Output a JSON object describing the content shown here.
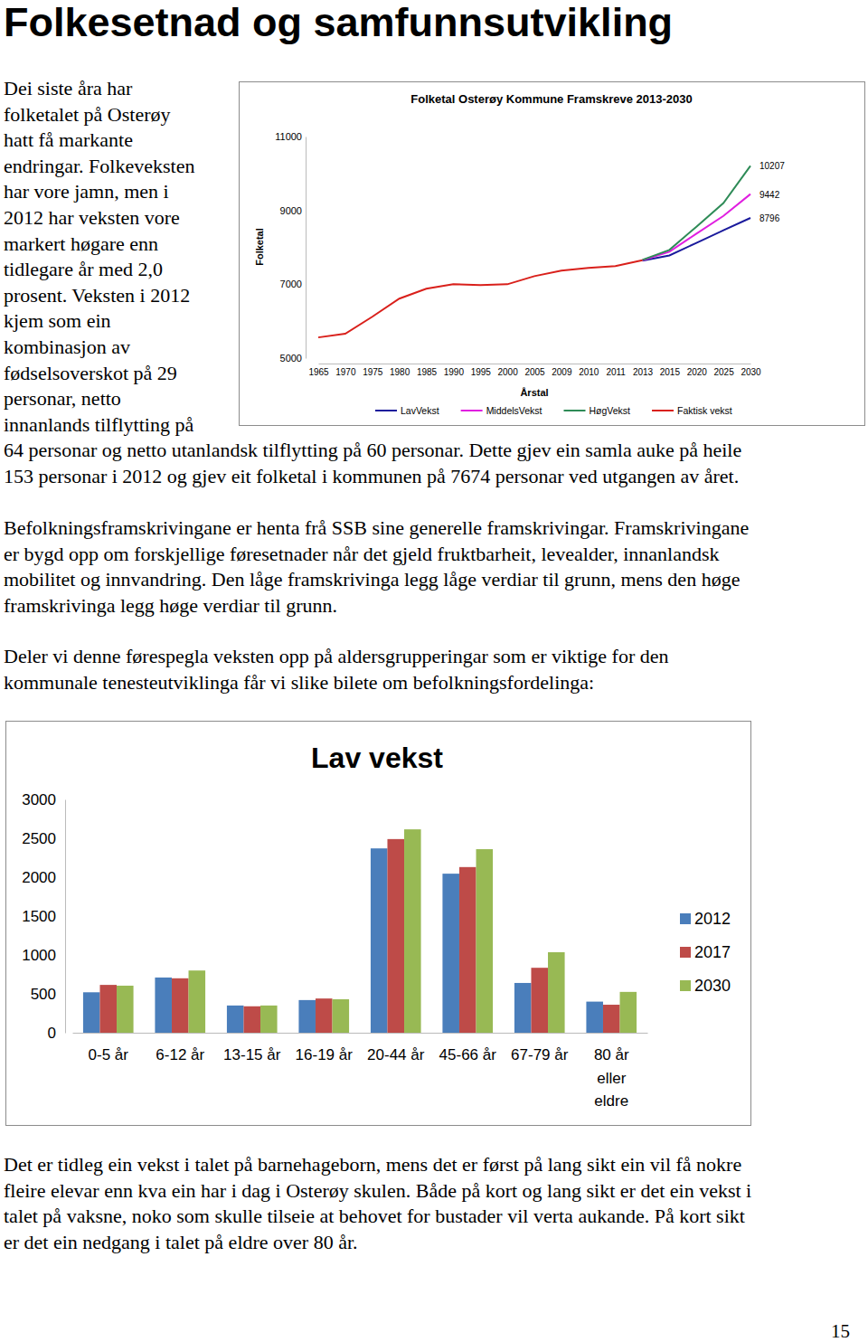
{
  "document": {
    "title": "Folkesetnad og samfunnsutvikling",
    "paragraphs": [
      [
        "Dei siste åra har",
        "folketalet på Osterøy",
        "hatt få markante",
        "endringar. Folkeveksten",
        "har vore jamn, men i",
        "2012 har veksten vore",
        "markert høgare enn",
        "tidlegare år med 2,0",
        "prosent. Veksten i 2012",
        "kjem som ein",
        "kombinasjon av",
        "fødselsoverskot på 29",
        "personar, netto",
        "innanlands tilflytting på",
        "64 personar og netto utanlandsk tilflytting på 60 personar. Dette gjev ein samla auke på heile",
        "153 personar i 2012 og gjev eit folketal i kommunen på 7674 personar ved utgangen av året."
      ],
      [
        "Befolkningsframskrivingane er henta frå SSB sine generelle framskrivingar. Framskrivingane",
        "er bygd opp om forskjellige føresetnader når det gjeld fruktbarheit, levealder, innanlandsk",
        "mobilitet og innvandring. Den låge framskrivinga legg låge verdiar til grunn, mens den høge",
        "framskrivinga legg høge verdiar til grunn."
      ],
      [
        "Deler vi denne førespegla veksten opp på aldersgrupperingar som er viktige for den",
        "kommunale tenesteutviklinga får vi slike bilete om befolkningsfordelinga:"
      ],
      [
        "Det er tidleg ein vekst i talet på barnehageborn, mens det er først på lang sikt ein vil få nokre",
        "fleire elevar enn kva ein har i dag i Osterøy skulen. Både på kort og lang sikt er det ein vekst i",
        "talet på vaksne, noko som skulle tilseie at behovet for bustader vil verta aukande. På kort sikt",
        "er det ein nedgang i talet på eldre over 80 år."
      ]
    ],
    "page_number": "15"
  },
  "chart_data": [
    {
      "type": "line",
      "title": "Folketal Osterøy Kommune Framskreve 2013-2030",
      "x_label": "Årstal",
      "y_label": "Folketal",
      "categories": [
        "1965",
        "1970",
        "1975",
        "1980",
        "1985",
        "1990",
        "1995",
        "2000",
        "2005",
        "2009",
        "2010",
        "2011",
        "2013",
        "2015",
        "2020",
        "2025",
        "2030"
      ],
      "ylim": [
        5000,
        11000
      ],
      "yticks": [
        5000,
        7000,
        9000,
        11000
      ],
      "grid": false,
      "legend": "bottom",
      "annotations": [
        "8796",
        "9442",
        "10207"
      ],
      "series": [
        {
          "name": "LavVekst",
          "color": "#1a1a9c",
          "values": [
            null,
            null,
            null,
            null,
            null,
            null,
            null,
            null,
            null,
            null,
            null,
            null,
            7640,
            7780,
            8120,
            8460,
            8796
          ]
        },
        {
          "name": "MiddelsVekst",
          "color": "#e01fe0",
          "values": [
            null,
            null,
            null,
            null,
            null,
            null,
            null,
            null,
            null,
            null,
            null,
            null,
            7650,
            7880,
            8370,
            8850,
            9442
          ]
        },
        {
          "name": "HøgVekst",
          "color": "#2e8b57",
          "values": [
            null,
            null,
            null,
            null,
            null,
            null,
            null,
            null,
            null,
            null,
            null,
            null,
            7660,
            7930,
            8560,
            9200,
            10207
          ]
        },
        {
          "name": "Faktisk vekst",
          "color": "#d9201b",
          "values": [
            5560,
            5660,
            6120,
            6610,
            6880,
            7000,
            6980,
            7000,
            7220,
            7370,
            7440,
            7490,
            7650,
            null,
            null,
            null,
            null
          ]
        }
      ]
    },
    {
      "type": "bar",
      "title": "Lav vekst",
      "categories": [
        "0-5 år",
        "6-12 år",
        "13-15 år",
        "16-19 år",
        "20-44 år",
        "45-66 år",
        "67-79 år",
        "80 år eller eldre"
      ],
      "ylim": [
        0,
        3000
      ],
      "yticks": [
        0,
        500,
        1000,
        1500,
        2000,
        2500,
        3000
      ],
      "grid": false,
      "legend": "right",
      "series": [
        {
          "name": "2012",
          "color": "#4a7ebb",
          "values": [
            520,
            710,
            350,
            420,
            2370,
            2045,
            640,
            400
          ]
        },
        {
          "name": "2017",
          "color": "#be4b48",
          "values": [
            615,
            700,
            340,
            440,
            2490,
            2130,
            835,
            360
          ]
        },
        {
          "name": "2030",
          "color": "#98b954",
          "values": [
            605,
            800,
            350,
            430,
            2615,
            2360,
            1035,
            525
          ]
        }
      ]
    }
  ]
}
